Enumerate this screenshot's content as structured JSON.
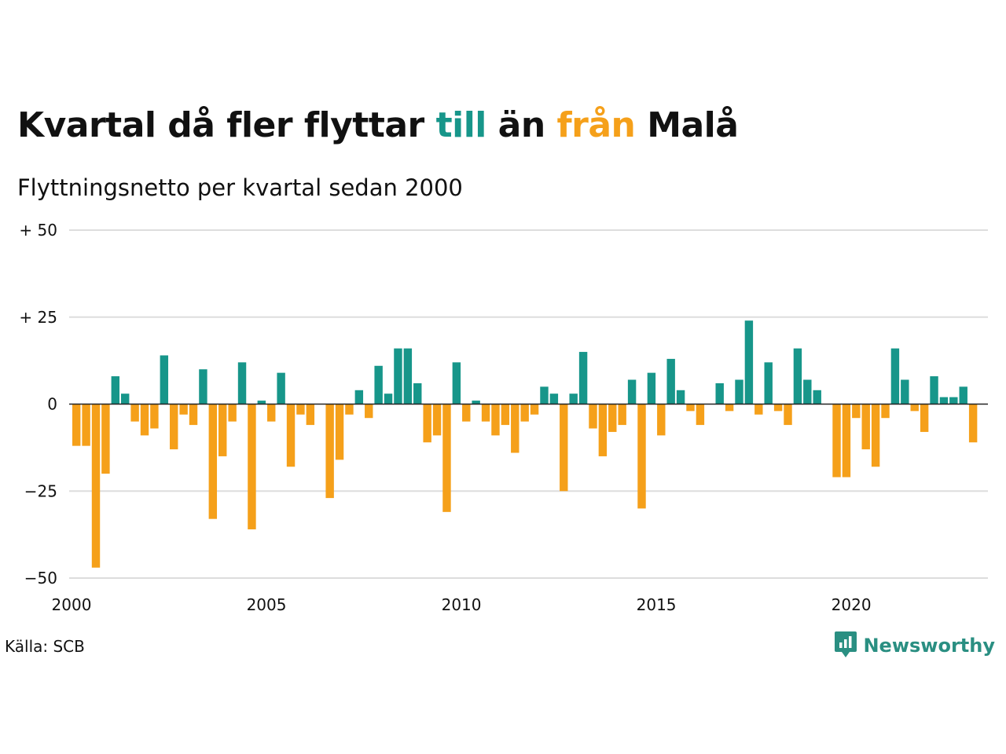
{
  "header": {
    "title_parts": [
      "Kvartal då fler flyttar ",
      "till",
      " än ",
      "från",
      " Malå"
    ],
    "subtitle": "Flyttningsnetto per kvartal sedan 2000"
  },
  "footer": {
    "source": "Källa: SCB",
    "brand": "Newsworthy",
    "brand_icon": "newsworthy-logo-icon"
  },
  "colors": {
    "positive": "#17968a",
    "negative": "#f5a01a",
    "grid": "#dddddd",
    "brand": "#2a8f82"
  },
  "chart_data": {
    "type": "bar",
    "title": "Kvartal då fler flyttar till än från Malå",
    "subtitle": "Flyttningsnetto per kvartal sedan 2000",
    "xlabel": "",
    "ylabel": "",
    "ylim": [
      -50,
      50
    ],
    "y_ticks": [
      50,
      25,
      0,
      -25,
      -50
    ],
    "y_tick_labels": [
      "+ 50",
      "+ 25",
      "0",
      "−25",
      "−50"
    ],
    "x_ticks": [
      2000,
      2005,
      2010,
      2015,
      2020
    ],
    "x_tick_labels": [
      "2000",
      "2005",
      "2010",
      "2015",
      "2020"
    ],
    "x_start": 2000,
    "periods_per_year": 4,
    "grid": true,
    "legend": "none",
    "values": [
      -12,
      -12,
      -47,
      -20,
      8,
      3,
      -5,
      -9,
      -7,
      14,
      -13,
      -3,
      -6,
      10,
      -33,
      -15,
      -5,
      12,
      -36,
      1,
      -5,
      9,
      -18,
      -3,
      -6,
      0,
      -27,
      -16,
      -3,
      4,
      -4,
      11,
      3,
      16,
      16,
      6,
      -11,
      -9,
      -31,
      12,
      -5,
      1,
      -5,
      -9,
      -6,
      -14,
      -5,
      -3,
      5,
      3,
      -25,
      3,
      15,
      -7,
      -15,
      -8,
      -6,
      7,
      -30,
      9,
      -9,
      13,
      4,
      -2,
      -6,
      0,
      6,
      -2,
      7,
      24,
      -3,
      12,
      -2,
      -6,
      16,
      7,
      4,
      0,
      -21,
      -21,
      -4,
      -13,
      -18,
      -4,
      16,
      7,
      -2,
      -8,
      8,
      2,
      2,
      5,
      -11
    ]
  }
}
